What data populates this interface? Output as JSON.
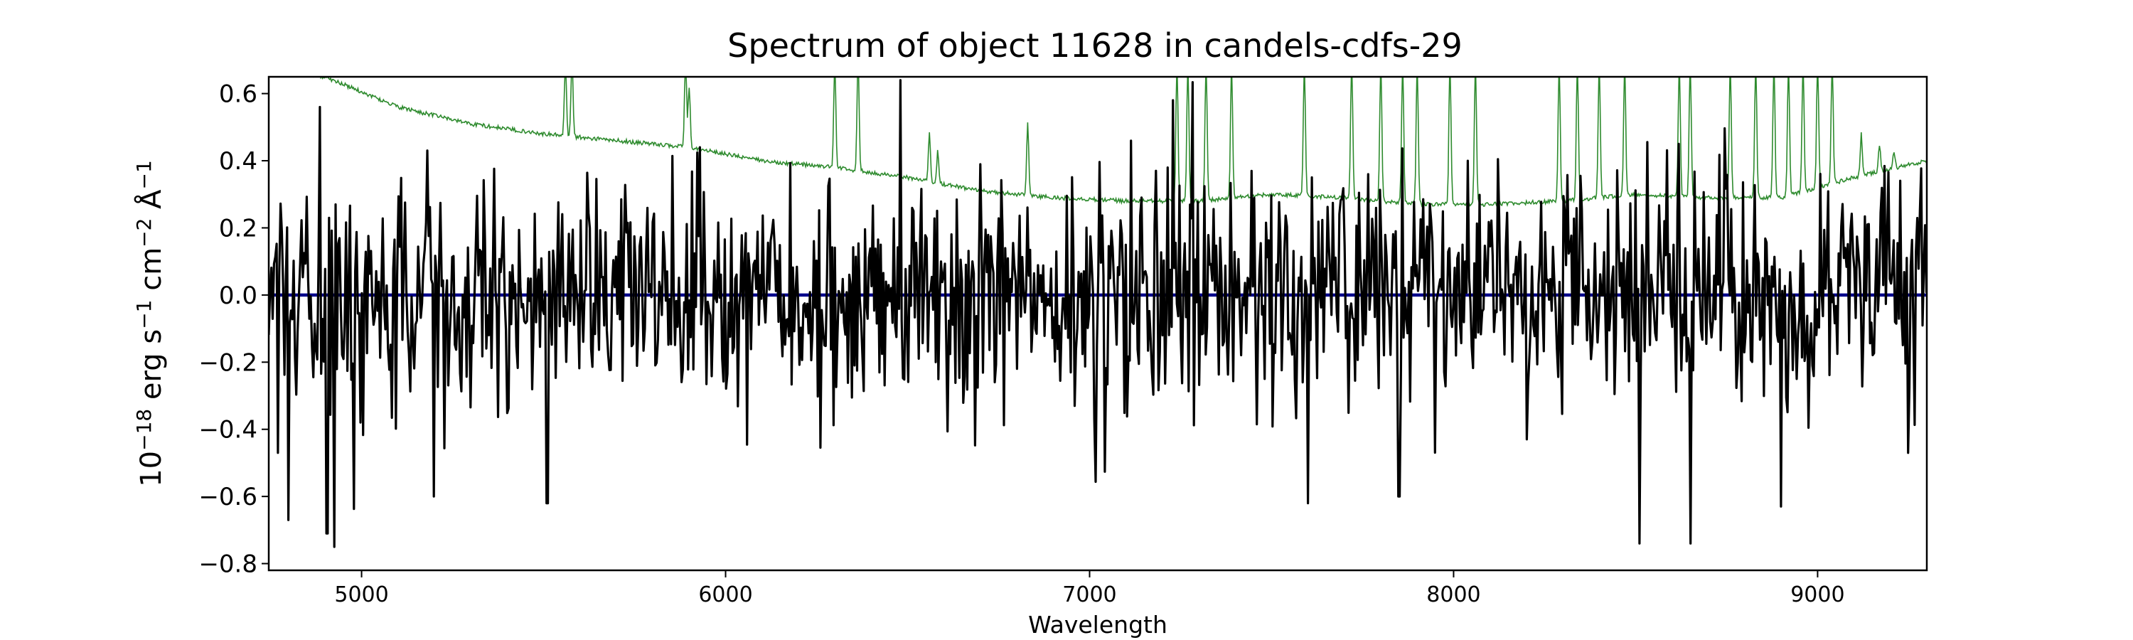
{
  "chart_data": {
    "type": "line",
    "title": "Spectrum of object 11628 in candels-cdfs-29",
    "xlabel": "Wavelength",
    "ylabel_parts": {
      "base": "10",
      "exp_a": "−18",
      "unit_a": " erg s",
      "exp_b": "−1",
      "unit_b": " cm",
      "exp_c": "−2",
      "unit_c": " Å",
      "exp_d": "−1"
    },
    "xlim": [
      4745,
      9300
    ],
    "ylim": [
      -0.82,
      0.65
    ],
    "xticks": [
      5000,
      6000,
      7000,
      8000,
      9000
    ],
    "xtick_labels": [
      "5000",
      "6000",
      "7000",
      "8000",
      "9000"
    ],
    "yticks": [
      0.6,
      0.4,
      0.2,
      0.0,
      -0.2,
      -0.4,
      -0.6,
      -0.8
    ],
    "ytick_labels": [
      "0.6",
      "0.4",
      "0.2",
      "0.0",
      "−0.2",
      "−0.4",
      "−0.6",
      "−0.8"
    ],
    "grid": false,
    "series": [
      {
        "role": "noise",
        "color": "#2e8b2e",
        "continuum": [
          [
            4745,
            0.67
          ],
          [
            4900,
            0.65
          ],
          [
            5100,
            0.56
          ],
          [
            5300,
            0.51
          ],
          [
            5500,
            0.48
          ],
          [
            5700,
            0.46
          ],
          [
            5900,
            0.44
          ],
          [
            6100,
            0.4
          ],
          [
            6300,
            0.38
          ],
          [
            6500,
            0.35
          ],
          [
            6700,
            0.31
          ],
          [
            6900,
            0.29
          ],
          [
            7100,
            0.28
          ],
          [
            7300,
            0.28
          ],
          [
            7500,
            0.3
          ],
          [
            7700,
            0.29
          ],
          [
            7900,
            0.27
          ],
          [
            8100,
            0.27
          ],
          [
            8300,
            0.28
          ],
          [
            8500,
            0.3
          ],
          [
            8700,
            0.29
          ],
          [
            8900,
            0.29
          ],
          [
            9100,
            0.35
          ],
          [
            9300,
            0.4
          ]
        ],
        "peaks": [
          [
            5560,
            0.7
          ],
          [
            5578,
            0.7
          ],
          [
            5890,
            0.7
          ],
          [
            5900,
            0.62
          ],
          [
            6300,
            0.7
          ],
          [
            6364,
            0.7
          ],
          [
            6560,
            0.48
          ],
          [
            6583,
            0.43
          ],
          [
            6830,
            0.52
          ],
          [
            7240,
            0.7
          ],
          [
            7270,
            0.7
          ],
          [
            7320,
            0.7
          ],
          [
            7390,
            0.7
          ],
          [
            7590,
            0.7
          ],
          [
            7720,
            0.7
          ],
          [
            7800,
            0.7
          ],
          [
            7860,
            0.7
          ],
          [
            7900,
            0.7
          ],
          [
            7990,
            0.7
          ],
          [
            8060,
            0.7
          ],
          [
            8290,
            0.7
          ],
          [
            8340,
            0.7
          ],
          [
            8400,
            0.7
          ],
          [
            8470,
            0.7
          ],
          [
            8620,
            0.7
          ],
          [
            8650,
            0.7
          ],
          [
            8760,
            0.7
          ],
          [
            8830,
            0.7
          ],
          [
            8880,
            0.7
          ],
          [
            8920,
            0.7
          ],
          [
            8960,
            0.7
          ],
          [
            9000,
            0.7
          ],
          [
            9040,
            0.7
          ],
          [
            9120,
            0.48
          ],
          [
            9170,
            0.45
          ],
          [
            9210,
            0.43
          ]
        ]
      },
      {
        "role": "model",
        "color": "#00008b",
        "points": [
          [
            4745,
            0.0
          ],
          [
            9300,
            0.0
          ]
        ]
      },
      {
        "role": "flux",
        "color": "#000000",
        "noise_sigma": 0.17,
        "extremes": [
          [
            4770,
            -0.47
          ],
          [
            4800,
            -0.67
          ],
          [
            4885,
            0.56
          ],
          [
            4905,
            -0.71
          ],
          [
            4925,
            -0.75
          ],
          [
            5200,
            -0.6
          ],
          [
            5510,
            -0.62
          ],
          [
            5930,
            0.44
          ],
          [
            7230,
            0.58
          ],
          [
            7600,
            -0.62
          ],
          [
            7850,
            -0.6
          ],
          [
            8510,
            -0.74
          ],
          [
            8580,
            0.22
          ],
          [
            8620,
            0.45
          ],
          [
            8650,
            -0.74
          ],
          [
            8900,
            -0.63
          ],
          [
            9250,
            -0.47
          ],
          [
            9280,
            0.25
          ]
        ]
      }
    ]
  }
}
